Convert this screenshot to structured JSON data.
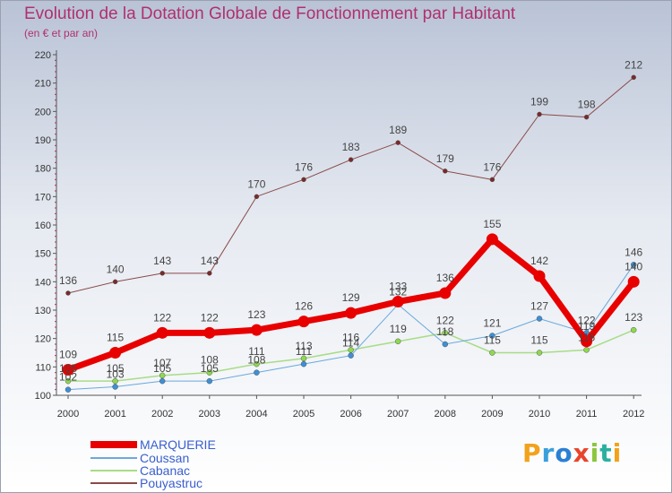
{
  "header": {
    "title": "Evolution de la Dotation Globale de Fonctionnement par Habitant",
    "subtitle": "(en € et par an)"
  },
  "logo": {
    "text": "Proxiti",
    "letters": [
      {
        "ch": "P",
        "color": "#f2a21b"
      },
      {
        "ch": "r",
        "color": "#3aa0dc"
      },
      {
        "ch": "o",
        "color": "#2a7fd4"
      },
      {
        "ch": "x",
        "color": "#e8452c"
      },
      {
        "ch": "i",
        "color": "#8cc63f"
      },
      {
        "ch": "t",
        "color": "#2ab0a0"
      },
      {
        "ch": "i",
        "color": "#f2a21b"
      }
    ]
  },
  "chart_data": {
    "type": "line",
    "title": "Evolution de la Dotation Globale de Fonctionnement par Habitant",
    "subtitle": "(en € et par an)",
    "xlabel": "",
    "ylabel": "",
    "x": [
      "2000",
      "2001",
      "2002",
      "2003",
      "2004",
      "2005",
      "2006",
      "2007",
      "2008",
      "2009",
      "2010",
      "2011",
      "2012"
    ],
    "ylim": [
      100,
      220
    ],
    "yticks": [
      100,
      110,
      120,
      130,
      140,
      150,
      160,
      170,
      180,
      190,
      200,
      210,
      220
    ],
    "grid": false,
    "legend_position": "bottom-left",
    "series": [
      {
        "name": "Pouyastruc",
        "color": "#7a2a2a",
        "line": "#8a4a4a",
        "width": 1,
        "marker": 2.5,
        "values": [
          136,
          140,
          143,
          143,
          170,
          176,
          183,
          189,
          179,
          176,
          199,
          198,
          212
        ],
        "labels": [
          "136",
          "140",
          "143",
          "143",
          "170",
          "176",
          "183",
          "189",
          "179",
          "176",
          "199",
          "198",
          "212"
        ]
      },
      {
        "name": "Cabanac",
        "color": "#8ed84f",
        "line": "#a8dc86",
        "width": 1.5,
        "marker": 3,
        "values": [
          105,
          105,
          107,
          108,
          111,
          113,
          116,
          119,
          122,
          115,
          115,
          116,
          123
        ],
        "labels": [
          "105",
          "105",
          "107",
          "108",
          "111",
          "113",
          "116",
          "119",
          "122",
          "115",
          "115",
          "116",
          "123"
        ]
      },
      {
        "name": "Coussan",
        "color": "#3d8fd6",
        "line": "#6aa8dc",
        "width": 1,
        "marker": 3,
        "values": [
          102,
          103,
          105,
          105,
          108,
          111,
          114,
          132,
          118,
          121,
          127,
          122,
          146
        ],
        "labels": [
          "102",
          "103",
          "105",
          "105",
          "108",
          "111",
          "114",
          "132",
          "118",
          "121",
          "127",
          "122",
          "146"
        ]
      },
      {
        "name": "MARQUERIE",
        "color": "#e80000",
        "line": "#e80000",
        "width": 7,
        "marker": 6.5,
        "values": [
          109,
          115,
          122,
          122,
          123,
          126,
          129,
          133,
          136,
          155,
          142,
          119,
          140
        ],
        "labels": [
          "109",
          "115",
          "122",
          "122",
          "123",
          "126",
          "129",
          "133",
          "136",
          "155",
          "142",
          "119",
          "140"
        ]
      }
    ],
    "legend": [
      "MARQUERIE",
      "Coussan",
      "Cabanac",
      "Pouyastruc"
    ]
  }
}
